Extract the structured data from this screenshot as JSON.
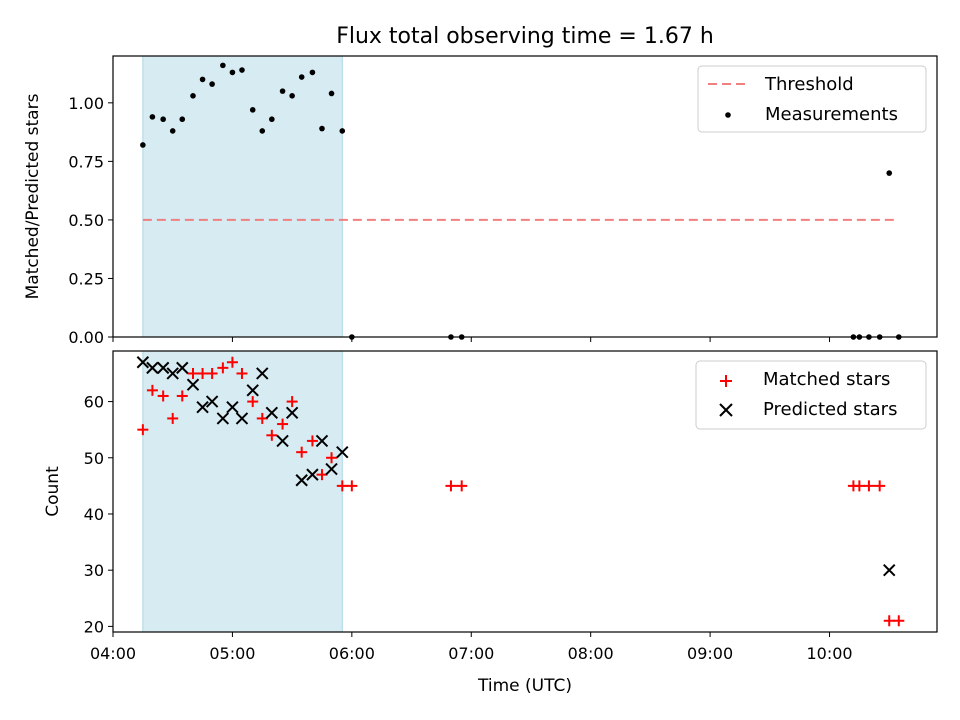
{
  "title": "Flux total observing time = 1.67 h",
  "colors": {
    "threshold": "#f08080",
    "measurement": "#000000",
    "matched": "#ff0000",
    "predicted": "#000000",
    "span": "#add8e6"
  },
  "chart_data": [
    {
      "type": "scatter",
      "panel": "top",
      "ylabel": "Matched/Predicted stars",
      "xlim": [
        4.0,
        10.9
      ],
      "ylim": [
        0.0,
        1.2
      ],
      "yticks": [
        0.0,
        0.25,
        0.5,
        0.75,
        1.0
      ],
      "ytick_labels": [
        "0.00",
        "0.25",
        "0.50",
        "0.75",
        "1.00"
      ],
      "highlight_span": [
        4.25,
        5.92
      ],
      "threshold": {
        "name": "Threshold",
        "y": 0.5,
        "x": [
          4.25,
          10.58
        ]
      },
      "legend_position": "upper right",
      "series": [
        {
          "name": "Measurements",
          "points": [
            [
              4.25,
              0.82
            ],
            [
              4.33,
              0.94
            ],
            [
              4.42,
              0.93
            ],
            [
              4.5,
              0.88
            ],
            [
              4.58,
              0.93
            ],
            [
              4.67,
              1.03
            ],
            [
              4.75,
              1.1
            ],
            [
              4.83,
              1.08
            ],
            [
              4.92,
              1.16
            ],
            [
              5.0,
              1.13
            ],
            [
              5.08,
              1.14
            ],
            [
              5.17,
              0.97
            ],
            [
              5.25,
              0.88
            ],
            [
              5.33,
              0.93
            ],
            [
              5.42,
              1.05
            ],
            [
              5.5,
              1.03
            ],
            [
              5.58,
              1.11
            ],
            [
              5.67,
              1.13
            ],
            [
              5.75,
              0.89
            ],
            [
              5.83,
              1.04
            ],
            [
              5.92,
              0.88
            ],
            [
              6.0,
              0.0
            ],
            [
              6.83,
              0.0
            ],
            [
              6.92,
              0.0
            ],
            [
              10.2,
              0.0
            ],
            [
              10.25,
              0.0
            ],
            [
              10.33,
              0.0
            ],
            [
              10.42,
              0.0
            ],
            [
              10.5,
              0.7
            ],
            [
              10.58,
              0.0
            ]
          ]
        }
      ]
    },
    {
      "type": "scatter",
      "panel": "bottom",
      "xlabel": "Time (UTC)",
      "ylabel": "Count",
      "xlim": [
        4.0,
        10.9
      ],
      "ylim": [
        19,
        69
      ],
      "xticks": [
        4,
        5,
        6,
        7,
        8,
        9,
        10
      ],
      "xtick_labels": [
        "04:00",
        "05:00",
        "06:00",
        "07:00",
        "08:00",
        "09:00",
        "10:00"
      ],
      "yticks": [
        20,
        30,
        40,
        50,
        60
      ],
      "ytick_labels": [
        "20",
        "30",
        "40",
        "50",
        "60"
      ],
      "highlight_span": [
        4.25,
        5.92
      ],
      "legend_position": "upper right",
      "series": [
        {
          "name": "Matched stars",
          "marker": "+",
          "points": [
            [
              4.25,
              55
            ],
            [
              4.33,
              62
            ],
            [
              4.42,
              61
            ],
            [
              4.5,
              57
            ],
            [
              4.58,
              61
            ],
            [
              4.67,
              65
            ],
            [
              4.75,
              65
            ],
            [
              4.83,
              65
            ],
            [
              4.92,
              66
            ],
            [
              5.0,
              67
            ],
            [
              5.08,
              65
            ],
            [
              5.17,
              60
            ],
            [
              5.25,
              57
            ],
            [
              5.33,
              54
            ],
            [
              5.42,
              56
            ],
            [
              5.5,
              60
            ],
            [
              5.58,
              51
            ],
            [
              5.67,
              53
            ],
            [
              5.75,
              47
            ],
            [
              5.83,
              50
            ],
            [
              5.92,
              45
            ],
            [
              6.0,
              45
            ],
            [
              6.83,
              45
            ],
            [
              6.92,
              45
            ],
            [
              10.2,
              45
            ],
            [
              10.25,
              45
            ],
            [
              10.33,
              45
            ],
            [
              10.42,
              45
            ],
            [
              10.5,
              21
            ],
            [
              10.58,
              21
            ]
          ]
        },
        {
          "name": "Predicted stars",
          "marker": "x",
          "points": [
            [
              4.25,
              67
            ],
            [
              4.33,
              66
            ],
            [
              4.42,
              66
            ],
            [
              4.5,
              65
            ],
            [
              4.58,
              66
            ],
            [
              4.67,
              63
            ],
            [
              4.75,
              59
            ],
            [
              4.83,
              60
            ],
            [
              4.92,
              57
            ],
            [
              5.0,
              59
            ],
            [
              5.08,
              57
            ],
            [
              5.17,
              62
            ],
            [
              5.25,
              65
            ],
            [
              5.33,
              58
            ],
            [
              5.42,
              53
            ],
            [
              5.5,
              58
            ],
            [
              5.58,
              46
            ],
            [
              5.67,
              47
            ],
            [
              5.75,
              53
            ],
            [
              5.83,
              48
            ],
            [
              5.92,
              51
            ],
            [
              10.5,
              30
            ]
          ]
        }
      ]
    }
  ]
}
